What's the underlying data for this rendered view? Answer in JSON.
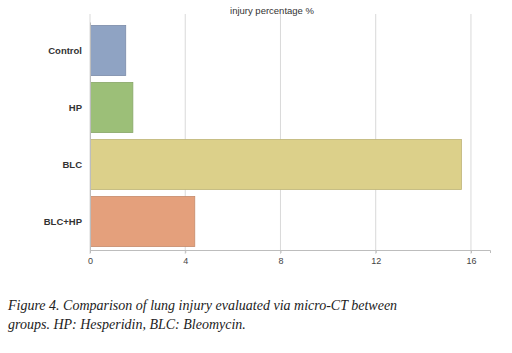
{
  "chart_data": {
    "type": "bar",
    "orientation": "horizontal",
    "title": "injury percentage %",
    "caption": [
      "Figure 4. Comparison of lung injury evaluated via micro-CT between",
      "groups. HP: Hesperidin, BLC: Bleomycin."
    ],
    "categories": [
      "Control",
      "HP",
      "BLC",
      "BLC+HP"
    ],
    "values": [
      1.5,
      1.8,
      15.6,
      4.4
    ],
    "colors": [
      "#8fa3c3",
      "#9cbf78",
      "#dcd08a",
      "#e4a07c"
    ],
    "xlim": [
      0,
      16.8
    ],
    "xticks": [
      0,
      4,
      8,
      12,
      16
    ],
    "grid": true
  }
}
